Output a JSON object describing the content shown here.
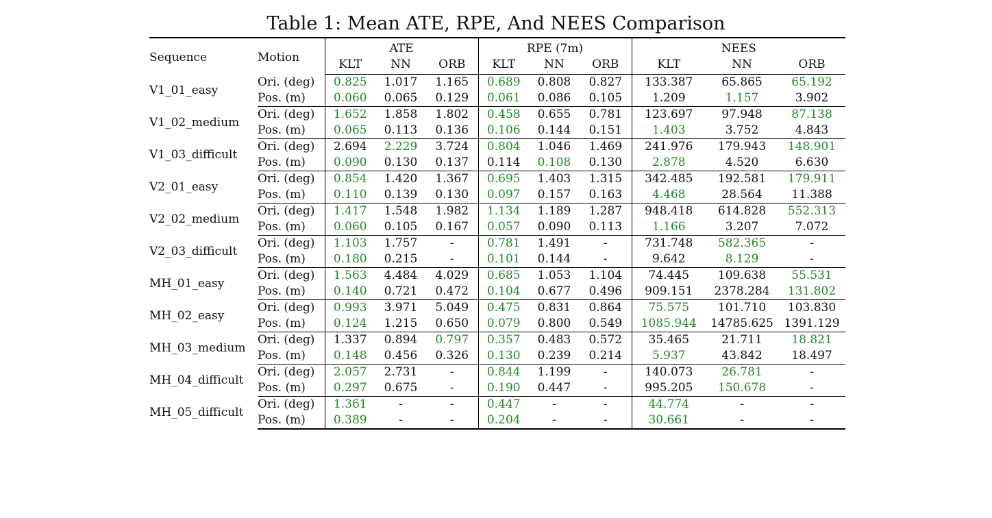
{
  "caption": "Table 1: Mean ATE, RPE, And NEES Comparison",
  "header": {
    "sequence": "Sequence",
    "motion": "Motion",
    "groups": [
      "ATE",
      "RPE (7m)",
      "NEES"
    ],
    "methods": [
      "KLT",
      "NN",
      "ORB"
    ]
  },
  "colors": {
    "best": "#1f8b1f",
    "text": "#111111"
  },
  "rows": [
    {
      "seq": "V1_01_easy",
      "ori": {
        "label": "Ori. (deg)",
        "v": [
          {
            "t": "0.825",
            "s": "g"
          },
          {
            "t": "1.017",
            "s": "b"
          },
          {
            "t": "1.165",
            "s": ""
          },
          {
            "t": "0.689",
            "s": "g"
          },
          {
            "t": "0.808",
            "s": "b"
          },
          {
            "t": "0.827",
            "s": ""
          },
          {
            "t": "133.387",
            "s": ""
          },
          {
            "t": "65.865",
            "s": "b"
          },
          {
            "t": "65.192",
            "s": "g"
          }
        ]
      },
      "pos": {
        "label": "Pos. (m)",
        "v": [
          {
            "t": "0.060",
            "s": "g"
          },
          {
            "t": "0.065",
            "s": "b"
          },
          {
            "t": "0.129",
            "s": ""
          },
          {
            "t": "0.061",
            "s": "g"
          },
          {
            "t": "0.086",
            "s": "b"
          },
          {
            "t": "0.105",
            "s": ""
          },
          {
            "t": "1.209",
            "s": "b"
          },
          {
            "t": "1.157",
            "s": "g"
          },
          {
            "t": "3.902",
            "s": ""
          }
        ]
      }
    },
    {
      "seq": "V1_02_medium",
      "ori": {
        "label": "Ori. (deg)",
        "v": [
          {
            "t": "1.652",
            "s": "g"
          },
          {
            "t": "1.858",
            "s": ""
          },
          {
            "t": "1.802",
            "s": "b"
          },
          {
            "t": "0.458",
            "s": "g"
          },
          {
            "t": "0.655",
            "s": "b"
          },
          {
            "t": "0.781",
            "s": ""
          },
          {
            "t": "123.697",
            "s": ""
          },
          {
            "t": "97.948",
            "s": "b"
          },
          {
            "t": "87.138",
            "s": "g"
          }
        ]
      },
      "pos": {
        "label": "Pos. (m)",
        "v": [
          {
            "t": "0.065",
            "s": "g"
          },
          {
            "t": "0.113",
            "s": "b"
          },
          {
            "t": "0.136",
            "s": ""
          },
          {
            "t": "0.106",
            "s": "g"
          },
          {
            "t": "0.144",
            "s": "b"
          },
          {
            "t": "0.151",
            "s": ""
          },
          {
            "t": "1.403",
            "s": "g"
          },
          {
            "t": "3.752",
            "s": "b"
          },
          {
            "t": "4.843",
            "s": ""
          }
        ]
      }
    },
    {
      "seq": "V1_03_difficult",
      "ori": {
        "label": "Ori. (deg)",
        "v": [
          {
            "t": "2.694",
            "s": "b"
          },
          {
            "t": "2.229",
            "s": "g"
          },
          {
            "t": "3.724",
            "s": ""
          },
          {
            "t": "0.804",
            "s": "g"
          },
          {
            "t": "1.046",
            "s": "b"
          },
          {
            "t": "1.469",
            "s": ""
          },
          {
            "t": "241.976",
            "s": ""
          },
          {
            "t": "179.943",
            "s": "b"
          },
          {
            "t": "148.901",
            "s": "g"
          }
        ]
      },
      "pos": {
        "label": "Pos. (m)",
        "v": [
          {
            "t": "0.090",
            "s": "g"
          },
          {
            "t": "0.130",
            "s": "b"
          },
          {
            "t": "0.137",
            "s": ""
          },
          {
            "t": "0.114",
            "s": "b"
          },
          {
            "t": "0.108",
            "s": "g"
          },
          {
            "t": "0.130",
            "s": ""
          },
          {
            "t": "2.878",
            "s": "g"
          },
          {
            "t": "4.520",
            "s": "b"
          },
          {
            "t": "6.630",
            "s": ""
          }
        ]
      }
    },
    {
      "seq": "V2_01_easy",
      "ori": {
        "label": "Ori. (deg)",
        "v": [
          {
            "t": "0.854",
            "s": "g"
          },
          {
            "t": "1.420",
            "s": ""
          },
          {
            "t": "1.367",
            "s": "b"
          },
          {
            "t": "0.695",
            "s": "g"
          },
          {
            "t": "1.403",
            "s": ""
          },
          {
            "t": "1.315",
            "s": "b"
          },
          {
            "t": "342.485",
            "s": ""
          },
          {
            "t": "192.581",
            "s": "b"
          },
          {
            "t": "179.911",
            "s": "g"
          }
        ]
      },
      "pos": {
        "label": "Pos. (m)",
        "v": [
          {
            "t": "0.110",
            "s": "g"
          },
          {
            "t": "0.139",
            "s": ""
          },
          {
            "t": "0.130",
            "s": "b"
          },
          {
            "t": "0.097",
            "s": "g"
          },
          {
            "t": "0.157",
            "s": "b"
          },
          {
            "t": "0.163",
            "s": ""
          },
          {
            "t": "4.468",
            "s": "g"
          },
          {
            "t": "28.564",
            "s": ""
          },
          {
            "t": "11.388",
            "s": "b"
          }
        ]
      }
    },
    {
      "seq": "V2_02_medium",
      "ori": {
        "label": "Ori. (deg)",
        "v": [
          {
            "t": "1.417",
            "s": "g"
          },
          {
            "t": "1.548",
            "s": "b"
          },
          {
            "t": "1.982",
            "s": ""
          },
          {
            "t": "1.134",
            "s": "g"
          },
          {
            "t": "1.189",
            "s": "b"
          },
          {
            "t": "1.287",
            "s": ""
          },
          {
            "t": "948.418",
            "s": ""
          },
          {
            "t": "614.828",
            "s": "b"
          },
          {
            "t": "552.313",
            "s": "g"
          }
        ]
      },
      "pos": {
        "label": "Pos. (m)",
        "v": [
          {
            "t": "0.060",
            "s": "g"
          },
          {
            "t": "0.105",
            "s": "b"
          },
          {
            "t": "0.167",
            "s": ""
          },
          {
            "t": "0.057",
            "s": "g"
          },
          {
            "t": "0.090",
            "s": "b"
          },
          {
            "t": "0.113",
            "s": ""
          },
          {
            "t": "1.166",
            "s": "g"
          },
          {
            "t": "3.207",
            "s": "b"
          },
          {
            "t": "7.072",
            "s": ""
          }
        ]
      }
    },
    {
      "seq": "V2_03_difficult",
      "ori": {
        "label": "Ori. (deg)",
        "v": [
          {
            "t": "1.103",
            "s": "g"
          },
          {
            "t": "1.757",
            "s": "b"
          },
          {
            "t": "-",
            "s": ""
          },
          {
            "t": "0.781",
            "s": "g"
          },
          {
            "t": "1.491",
            "s": "b"
          },
          {
            "t": "-",
            "s": ""
          },
          {
            "t": "731.748",
            "s": "b"
          },
          {
            "t": "582.365",
            "s": "g"
          },
          {
            "t": "-",
            "s": ""
          }
        ]
      },
      "pos": {
        "label": "Pos. (m)",
        "v": [
          {
            "t": "0.180",
            "s": "g"
          },
          {
            "t": "0.215",
            "s": "b"
          },
          {
            "t": "-",
            "s": ""
          },
          {
            "t": "0.101",
            "s": "g"
          },
          {
            "t": "0.144",
            "s": "b"
          },
          {
            "t": "-",
            "s": ""
          },
          {
            "t": "9.642",
            "s": "b"
          },
          {
            "t": "8.129",
            "s": "g"
          },
          {
            "t": "-",
            "s": ""
          }
        ]
      }
    },
    {
      "seq": "MH_01_easy",
      "ori": {
        "label": "Ori. (deg)",
        "v": [
          {
            "t": "1.563",
            "s": "g"
          },
          {
            "t": "4.484",
            "s": ""
          },
          {
            "t": "4.029",
            "s": "b"
          },
          {
            "t": "0.685",
            "s": "g"
          },
          {
            "t": "1.053",
            "s": "b"
          },
          {
            "t": "1.104",
            "s": ""
          },
          {
            "t": "74.445",
            "s": "b"
          },
          {
            "t": "109.638",
            "s": ""
          },
          {
            "t": "55.531",
            "s": "g"
          }
        ]
      },
      "pos": {
        "label": "Pos. (m)",
        "v": [
          {
            "t": "0.140",
            "s": "g"
          },
          {
            "t": "0.721",
            "s": ""
          },
          {
            "t": "0.472",
            "s": "b"
          },
          {
            "t": "0.104",
            "s": "g"
          },
          {
            "t": "0.677",
            "s": ""
          },
          {
            "t": "0.496",
            "s": "b"
          },
          {
            "t": "909.151",
            "s": "b"
          },
          {
            "t": "2378.284",
            "s": ""
          },
          {
            "t": "131.802",
            "s": "g"
          }
        ]
      }
    },
    {
      "seq": "MH_02_easy",
      "ori": {
        "label": "Ori. (deg)",
        "v": [
          {
            "t": "0.993",
            "s": "g"
          },
          {
            "t": "3.971",
            "s": "b"
          },
          {
            "t": "5.049",
            "s": ""
          },
          {
            "t": "0.475",
            "s": "g"
          },
          {
            "t": "0.831",
            "s": "b"
          },
          {
            "t": "0.864",
            "s": ""
          },
          {
            "t": "75.575",
            "s": "g"
          },
          {
            "t": "101.710",
            "s": "b"
          },
          {
            "t": "103.830",
            "s": ""
          }
        ]
      },
      "pos": {
        "label": "Pos. (m)",
        "v": [
          {
            "t": "0.124",
            "s": "g"
          },
          {
            "t": "1.215",
            "s": ""
          },
          {
            "t": "0.650",
            "s": "b"
          },
          {
            "t": "0.079",
            "s": "g"
          },
          {
            "t": "0.800",
            "s": ""
          },
          {
            "t": "0.549",
            "s": "b"
          },
          {
            "t": "1085.944",
            "s": "g"
          },
          {
            "t": "14785.625",
            "s": ""
          },
          {
            "t": "1391.129",
            "s": "b"
          }
        ]
      }
    },
    {
      "seq": "MH_03_medium",
      "ori": {
        "label": "Ori. (deg)",
        "v": [
          {
            "t": "1.337",
            "s": ""
          },
          {
            "t": "0.894",
            "s": "b"
          },
          {
            "t": "0.797",
            "s": "g"
          },
          {
            "t": "0.357",
            "s": "g"
          },
          {
            "t": "0.483",
            "s": "b"
          },
          {
            "t": "0.572",
            "s": ""
          },
          {
            "t": "35.465",
            "s": ""
          },
          {
            "t": "21.711",
            "s": "b"
          },
          {
            "t": "18.821",
            "s": "g"
          }
        ]
      },
      "pos": {
        "label": "Pos. (m)",
        "v": [
          {
            "t": "0.148",
            "s": "g"
          },
          {
            "t": "0.456",
            "s": ""
          },
          {
            "t": "0.326",
            "s": "b"
          },
          {
            "t": "0.130",
            "s": "g"
          },
          {
            "t": "0.239",
            "s": ""
          },
          {
            "t": "0.214",
            "s": "b"
          },
          {
            "t": "5.937",
            "s": "g"
          },
          {
            "t": "43.842",
            "s": ""
          },
          {
            "t": "18.497",
            "s": "b"
          }
        ]
      }
    },
    {
      "seq": "MH_04_difficult",
      "ori": {
        "label": "Ori. (deg)",
        "v": [
          {
            "t": "2.057",
            "s": "g"
          },
          {
            "t": "2.731",
            "s": "b"
          },
          {
            "t": "-",
            "s": ""
          },
          {
            "t": "0.844",
            "s": "g"
          },
          {
            "t": "1.199",
            "s": "b"
          },
          {
            "t": "-",
            "s": ""
          },
          {
            "t": "140.073",
            "s": "b"
          },
          {
            "t": "26.781",
            "s": "g"
          },
          {
            "t": "-",
            "s": ""
          }
        ]
      },
      "pos": {
        "label": "Pos. (m)",
        "v": [
          {
            "t": "0.297",
            "s": "g"
          },
          {
            "t": "0.675",
            "s": "b"
          },
          {
            "t": "-",
            "s": ""
          },
          {
            "t": "0.190",
            "s": "g"
          },
          {
            "t": "0.447",
            "s": "b"
          },
          {
            "t": "-",
            "s": ""
          },
          {
            "t": "995.205",
            "s": "b"
          },
          {
            "t": "150.678",
            "s": "g"
          },
          {
            "t": "-",
            "s": ""
          }
        ]
      }
    },
    {
      "seq": "MH_05_difficult",
      "ori": {
        "label": "Ori. (deg)",
        "v": [
          {
            "t": "1.361",
            "s": "g"
          },
          {
            "t": "-",
            "s": ""
          },
          {
            "t": "-",
            "s": ""
          },
          {
            "t": "0.447",
            "s": "g"
          },
          {
            "t": "-",
            "s": ""
          },
          {
            "t": "-",
            "s": ""
          },
          {
            "t": "44.774",
            "s": "g"
          },
          {
            "t": "-",
            "s": ""
          },
          {
            "t": "-",
            "s": ""
          }
        ]
      },
      "pos": {
        "label": "Pos. (m)",
        "v": [
          {
            "t": "0.389",
            "s": "g"
          },
          {
            "t": "-",
            "s": ""
          },
          {
            "t": "-",
            "s": ""
          },
          {
            "t": "0.204",
            "s": "g"
          },
          {
            "t": "-",
            "s": ""
          },
          {
            "t": "-",
            "s": ""
          },
          {
            "t": "30.661",
            "s": "g"
          },
          {
            "t": "-",
            "s": ""
          },
          {
            "t": "-",
            "s": ""
          }
        ]
      }
    }
  ]
}
